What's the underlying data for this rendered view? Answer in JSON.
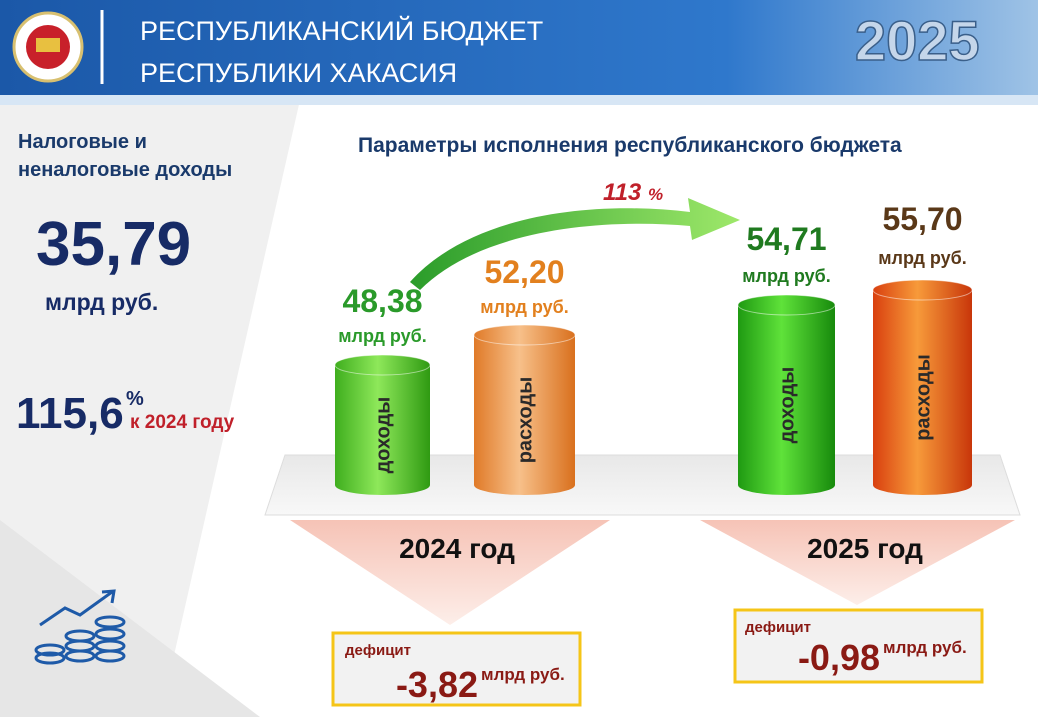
{
  "header": {
    "title_lines": [
      "РЕСПУБЛИКАНСКИЙ БЮДЖЕТ",
      "РЕСПУБЛИКИ ХАКАСИЯ"
    ],
    "year": "2025"
  },
  "left": {
    "label_lines": [
      "Налоговые и",
      "неналоговые доходы"
    ],
    "value": "35,79",
    "unit": "млрд руб.",
    "growth": "115,6",
    "growth_unit": "%",
    "growth_note": "к 2024 году"
  },
  "main": {
    "title": "Параметры исполнения республиканского бюджета",
    "growth": "113",
    "growth_unit": "%",
    "groups": [
      {
        "year": "2024 год",
        "income": {
          "value": "48,38",
          "unit": "млрд руб.",
          "label": "доходы"
        },
        "expense": {
          "value": "52,20",
          "unit": "млрд руб.",
          "label": "расходы"
        },
        "deficit": {
          "label": "дефицит",
          "value": "-3,82",
          "unit": "млрд руб."
        }
      },
      {
        "year": "2025 год",
        "income": {
          "value": "54,71",
          "unit": "млрд руб.",
          "label": "доходы"
        },
        "expense": {
          "value": "55,70",
          "unit": "млрд руб.",
          "label": "расходы"
        },
        "deficit": {
          "label": "дефицит",
          "value": "-0,98",
          "unit": "млрд руб."
        }
      }
    ]
  }
}
